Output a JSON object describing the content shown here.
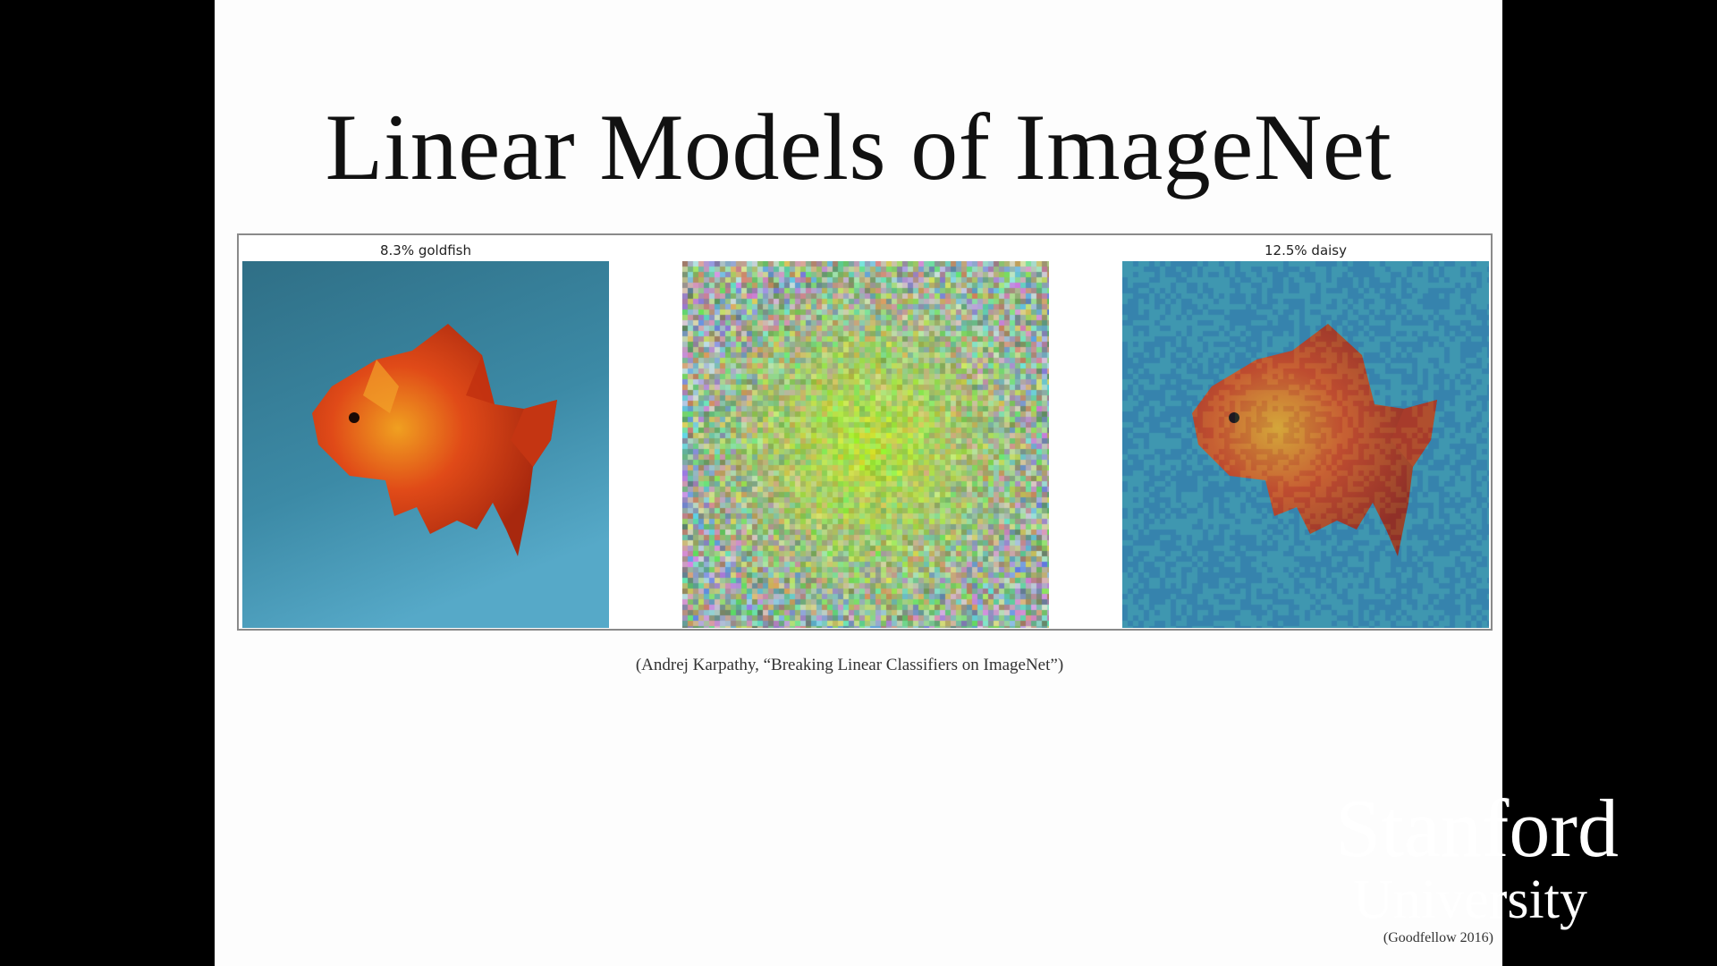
{
  "slide": {
    "title": "Linear Models of ImageNet",
    "citation": "(Andrej Karpathy, “Breaking Linear Classifiers on ImageNet”)",
    "attribution": "(Goodfellow 2016)"
  },
  "figure": {
    "panels": [
      {
        "caption": "8.3% goldfish",
        "content": "goldfish photo"
      },
      {
        "caption": "",
        "content": "adversarial noise"
      },
      {
        "caption": "12.5% daisy",
        "content": "goldfish photo with noise"
      }
    ]
  },
  "logo": {
    "line1": "Stanford",
    "line2": "University"
  },
  "colors": {
    "background": "#000000",
    "slide": "#fdfdfd",
    "water": "#3a7e97",
    "fish": "#d8471a",
    "logo": "#ffffff"
  }
}
